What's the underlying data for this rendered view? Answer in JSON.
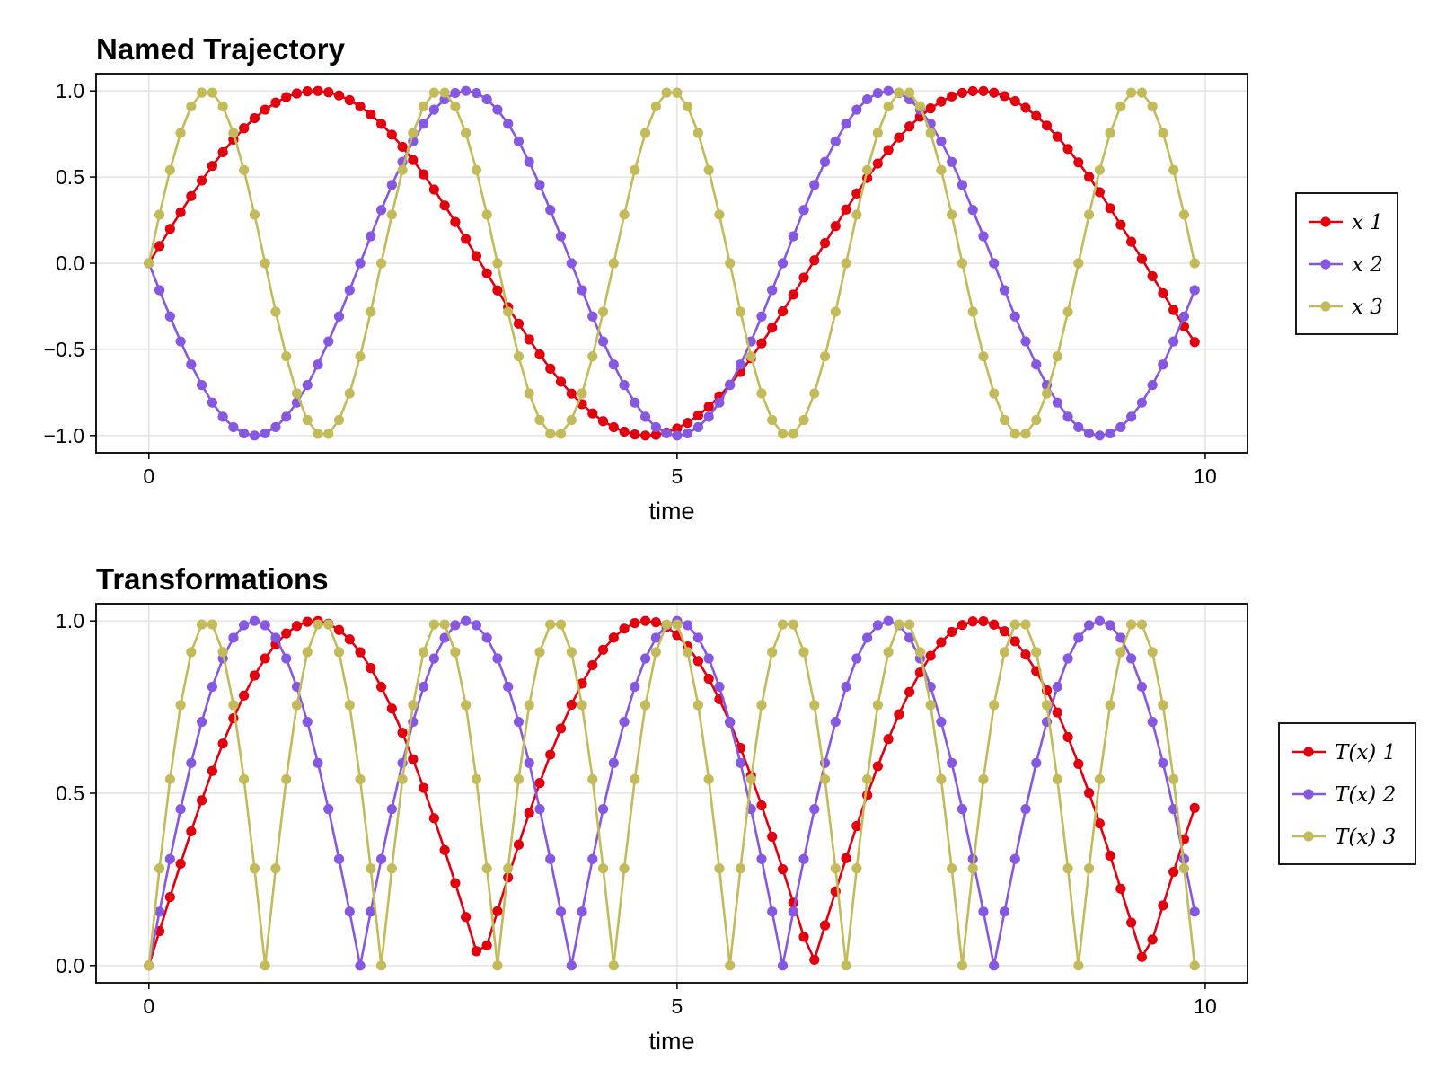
{
  "chart_data": [
    {
      "type": "line",
      "title": "Named Trajectory",
      "xlabel": "time",
      "ylabel": "",
      "xlim": [
        -0.5,
        10.4
      ],
      "ylim": [
        -1.1,
        1.1
      ],
      "xticks": [
        0,
        5,
        10
      ],
      "xtick_labels": [
        "0",
        "5",
        "10"
      ],
      "yticks": [
        1.0,
        0.5,
        0.0,
        -0.5,
        -1.0
      ],
      "ytick_labels": [
        "1.0",
        "0.5",
        "0.0",
        "−0.5",
        "−1.0"
      ],
      "grid": true,
      "legend_position": "right",
      "markers": true,
      "x": [
        0.0,
        0.1,
        0.2,
        0.3,
        0.4,
        0.5,
        0.6,
        0.7,
        0.8,
        0.9,
        1.0,
        1.1,
        1.2,
        1.3,
        1.4,
        1.5,
        1.6,
        1.7,
        1.8,
        1.9,
        2.0,
        2.1,
        2.2,
        2.3,
        2.4,
        2.5,
        2.6,
        2.7,
        2.8,
        2.9,
        3.0,
        3.1,
        3.2,
        3.3,
        3.4,
        3.5,
        3.6,
        3.7,
        3.8,
        3.9,
        4.0,
        4.1,
        4.2,
        4.3,
        4.4,
        4.5,
        4.6,
        4.7,
        4.8,
        4.9,
        5.0,
        5.1,
        5.2,
        5.3,
        5.4,
        5.5,
        5.6,
        5.7,
        5.8,
        5.9,
        6.0,
        6.1,
        6.2,
        6.3,
        6.4,
        6.5,
        6.6,
        6.7,
        6.8,
        6.9,
        7.0,
        7.1,
        7.2,
        7.3,
        7.4,
        7.5,
        7.6,
        7.7,
        7.8,
        7.9,
        8.0,
        8.1,
        8.2,
        8.3,
        8.4,
        8.5,
        8.6,
        8.7,
        8.8,
        8.9,
        9.0,
        9.1,
        9.2,
        9.3,
        9.4,
        9.5,
        9.6,
        9.7,
        9.8,
        9.9
      ],
      "series": [
        {
          "name": "x 1",
          "color": "#e2000e",
          "values": [
            0.0,
            0.0998,
            0.1987,
            0.2955,
            0.3894,
            0.4794,
            0.5646,
            0.6442,
            0.7174,
            0.7833,
            0.8415,
            0.8912,
            0.932,
            0.9636,
            0.9854,
            0.9975,
            0.9996,
            0.9917,
            0.9738,
            0.9463,
            0.9093,
            0.8632,
            0.8085,
            0.7457,
            0.6755,
            0.5985,
            0.5155,
            0.4274,
            0.335,
            0.2392,
            0.1411,
            0.0416,
            -0.0584,
            -0.1577,
            -0.2555,
            -0.3508,
            -0.4425,
            -0.5298,
            -0.6119,
            -0.6878,
            -0.7568,
            -0.8183,
            -0.8716,
            -0.9162,
            -0.9516,
            -0.9775,
            -0.9937,
            -0.9999,
            -0.9962,
            -0.9825,
            -0.9589,
            -0.9258,
            -0.8835,
            -0.8323,
            -0.7728,
            -0.7055,
            -0.6313,
            -0.5507,
            -0.4646,
            -0.3739,
            -0.2794,
            -0.1822,
            -0.0831,
            0.0168,
            0.1165,
            0.2151,
            0.3115,
            0.4048,
            0.4941,
            0.5784,
            0.657,
            0.729,
            0.7937,
            0.8504,
            0.8987,
            0.938,
            0.968,
            0.9882,
            0.9985,
            0.9989,
            0.9894,
            0.9699,
            0.9407,
            0.9022,
            0.8546,
            0.7985,
            0.7344,
            0.663,
            0.5849,
            0.501,
            0.4121,
            0.319,
            0.2229,
            0.1245,
            0.0248,
            -0.0752,
            -0.1743,
            -0.2718,
            -0.3665,
            -0.4575
          ]
        },
        {
          "name": "x 2",
          "color": "#8657e0",
          "values": [
            0.0,
            -0.1564,
            -0.309,
            -0.454,
            -0.5878,
            -0.7071,
            -0.809,
            -0.891,
            -0.9511,
            -0.9877,
            -1.0,
            -0.9877,
            -0.9511,
            -0.891,
            -0.809,
            -0.7071,
            -0.5878,
            -0.454,
            -0.309,
            -0.1564,
            0.0,
            0.1564,
            0.309,
            0.454,
            0.5878,
            0.7071,
            0.809,
            0.891,
            0.9511,
            0.9877,
            1.0,
            0.9877,
            0.9511,
            0.891,
            0.809,
            0.7071,
            0.5878,
            0.454,
            0.309,
            0.1564,
            0.0,
            -0.1564,
            -0.309,
            -0.454,
            -0.5878,
            -0.7071,
            -0.809,
            -0.891,
            -0.9511,
            -0.9877,
            -1.0,
            -0.9877,
            -0.9511,
            -0.891,
            -0.809,
            -0.7071,
            -0.5878,
            -0.454,
            -0.309,
            -0.1564,
            0.0,
            0.1564,
            0.309,
            0.454,
            0.5878,
            0.7071,
            0.809,
            0.891,
            0.9511,
            0.9877,
            1.0,
            0.9877,
            0.9511,
            0.891,
            0.809,
            0.7071,
            0.5878,
            0.454,
            0.309,
            0.1564,
            0.0,
            -0.1564,
            -0.309,
            -0.454,
            -0.5878,
            -0.7071,
            -0.809,
            -0.891,
            -0.9511,
            -0.9877,
            -1.0,
            -0.9877,
            -0.9511,
            -0.891,
            -0.809,
            -0.7071,
            -0.5878,
            -0.454,
            -0.309,
            -0.1564
          ]
        },
        {
          "name": "x 3",
          "color": "#c3bb5a",
          "values": [
            0.0,
            0.2817,
            0.5406,
            0.7558,
            0.9096,
            0.9898,
            0.9898,
            0.9096,
            0.7558,
            0.5406,
            0.2817,
            0.0,
            -0.2817,
            -0.5406,
            -0.7558,
            -0.9096,
            -0.9898,
            -0.9898,
            -0.9096,
            -0.7558,
            -0.5406,
            -0.2817,
            0.0,
            0.2817,
            0.5406,
            0.7558,
            0.9096,
            0.9898,
            0.9898,
            0.9096,
            0.7558,
            0.5406,
            0.2817,
            0.0,
            -0.2817,
            -0.5406,
            -0.7558,
            -0.9096,
            -0.9898,
            -0.9898,
            -0.9096,
            -0.7558,
            -0.5406,
            -0.2817,
            0.0,
            0.2817,
            0.5406,
            0.7558,
            0.9096,
            0.9898,
            0.9898,
            0.9096,
            0.7558,
            0.5406,
            0.2817,
            0.0,
            -0.2817,
            -0.5406,
            -0.7558,
            -0.9096,
            -0.9898,
            -0.9898,
            -0.9096,
            -0.7558,
            -0.5406,
            -0.2817,
            0.0,
            0.2817,
            0.5406,
            0.7558,
            0.9096,
            0.9898,
            0.9898,
            0.9096,
            0.7558,
            0.5406,
            0.2817,
            0.0,
            -0.2817,
            -0.5406,
            -0.7558,
            -0.9096,
            -0.9898,
            -0.9898,
            -0.9096,
            -0.7558,
            -0.5406,
            -0.2817,
            0.0,
            0.2817,
            0.5406,
            0.7558,
            0.9096,
            0.9898,
            0.9898,
            0.9096,
            0.7558,
            0.5406,
            0.2817,
            0.0
          ]
        }
      ]
    },
    {
      "type": "line",
      "title": "Transformations",
      "xlabel": "time",
      "ylabel": "",
      "xlim": [
        -0.5,
        10.4
      ],
      "ylim": [
        -0.05,
        1.05
      ],
      "xticks": [
        0,
        5,
        10
      ],
      "xtick_labels": [
        "0",
        "5",
        "10"
      ],
      "yticks": [
        1.0,
        0.5,
        0.0
      ],
      "ytick_labels": [
        "1.0",
        "0.5",
        "0.0"
      ],
      "grid": true,
      "legend_position": "right",
      "markers": true,
      "x": [
        0.0,
        0.1,
        0.2,
        0.3,
        0.4,
        0.5,
        0.6,
        0.7,
        0.8,
        0.9,
        1.0,
        1.1,
        1.2,
        1.3,
        1.4,
        1.5,
        1.6,
        1.7,
        1.8,
        1.9,
        2.0,
        2.1,
        2.2,
        2.3,
        2.4,
        2.5,
        2.6,
        2.7,
        2.8,
        2.9,
        3.0,
        3.1,
        3.2,
        3.3,
        3.4,
        3.5,
        3.6,
        3.7,
        3.8,
        3.9,
        4.0,
        4.1,
        4.2,
        4.3,
        4.4,
        4.5,
        4.6,
        4.7,
        4.8,
        4.9,
        5.0,
        5.1,
        5.2,
        5.3,
        5.4,
        5.5,
        5.6,
        5.7,
        5.8,
        5.9,
        6.0,
        6.1,
        6.2,
        6.3,
        6.4,
        6.5,
        6.6,
        6.7,
        6.8,
        6.9,
        7.0,
        7.1,
        7.2,
        7.3,
        7.4,
        7.5,
        7.6,
        7.7,
        7.8,
        7.9,
        8.0,
        8.1,
        8.2,
        8.3,
        8.4,
        8.5,
        8.6,
        8.7,
        8.8,
        8.9,
        9.0,
        9.1,
        9.2,
        9.3,
        9.4,
        9.5,
        9.6,
        9.7,
        9.8,
        9.9
      ],
      "series": [
        {
          "name": "T(x) 1",
          "color": "#e2000e",
          "values": [
            0.0,
            0.0998,
            0.1987,
            0.2955,
            0.3894,
            0.4794,
            0.5646,
            0.6442,
            0.7174,
            0.7833,
            0.8415,
            0.8912,
            0.932,
            0.9636,
            0.9854,
            0.9975,
            0.9996,
            0.9917,
            0.9738,
            0.9463,
            0.9093,
            0.8632,
            0.8085,
            0.7457,
            0.6755,
            0.5985,
            0.5155,
            0.4274,
            0.335,
            0.2392,
            0.1411,
            0.0416,
            0.0584,
            0.1577,
            0.2555,
            0.3508,
            0.4425,
            0.5298,
            0.6119,
            0.6878,
            0.7568,
            0.8183,
            0.8716,
            0.9162,
            0.9516,
            0.9775,
            0.9937,
            0.9999,
            0.9962,
            0.9825,
            0.9589,
            0.9258,
            0.8835,
            0.8323,
            0.7728,
            0.7055,
            0.6313,
            0.5507,
            0.4646,
            0.3739,
            0.2794,
            0.1822,
            0.0831,
            0.0168,
            0.1165,
            0.2151,
            0.3115,
            0.4048,
            0.4941,
            0.5784,
            0.657,
            0.729,
            0.7937,
            0.8504,
            0.8987,
            0.938,
            0.968,
            0.9882,
            0.9985,
            0.9989,
            0.9894,
            0.9699,
            0.9407,
            0.9022,
            0.8546,
            0.7985,
            0.7344,
            0.663,
            0.5849,
            0.501,
            0.4121,
            0.319,
            0.2229,
            0.1245,
            0.0248,
            0.0752,
            0.1743,
            0.2718,
            0.3665,
            0.4575
          ]
        },
        {
          "name": "T(x) 2",
          "color": "#8657e0",
          "values": [
            0.0,
            0.1564,
            0.309,
            0.454,
            0.5878,
            0.7071,
            0.809,
            0.891,
            0.9511,
            0.9877,
            1.0,
            0.9877,
            0.9511,
            0.891,
            0.809,
            0.7071,
            0.5878,
            0.454,
            0.309,
            0.1564,
            0.0,
            0.1564,
            0.309,
            0.454,
            0.5878,
            0.7071,
            0.809,
            0.891,
            0.9511,
            0.9877,
            1.0,
            0.9877,
            0.9511,
            0.891,
            0.809,
            0.7071,
            0.5878,
            0.454,
            0.309,
            0.1564,
            0.0,
            0.1564,
            0.309,
            0.454,
            0.5878,
            0.7071,
            0.809,
            0.891,
            0.9511,
            0.9877,
            1.0,
            0.9877,
            0.9511,
            0.891,
            0.809,
            0.7071,
            0.5878,
            0.454,
            0.309,
            0.1564,
            0.0,
            0.1564,
            0.309,
            0.454,
            0.5878,
            0.7071,
            0.809,
            0.891,
            0.9511,
            0.9877,
            1.0,
            0.9877,
            0.9511,
            0.891,
            0.809,
            0.7071,
            0.5878,
            0.454,
            0.309,
            0.1564,
            0.0,
            0.1564,
            0.309,
            0.454,
            0.5878,
            0.7071,
            0.809,
            0.891,
            0.9511,
            0.9877,
            1.0,
            0.9877,
            0.9511,
            0.891,
            0.809,
            0.7071,
            0.5878,
            0.454,
            0.309,
            0.1564
          ]
        },
        {
          "name": "T(x) 3",
          "color": "#c3bb5a",
          "values": [
            0.0,
            0.2817,
            0.5406,
            0.7558,
            0.9096,
            0.9898,
            0.9898,
            0.9096,
            0.7558,
            0.5406,
            0.2817,
            0.0,
            0.2817,
            0.5406,
            0.7558,
            0.9096,
            0.9898,
            0.9898,
            0.9096,
            0.7558,
            0.5406,
            0.2817,
            0.0,
            0.2817,
            0.5406,
            0.7558,
            0.9096,
            0.9898,
            0.9898,
            0.9096,
            0.7558,
            0.5406,
            0.2817,
            0.0,
            0.2817,
            0.5406,
            0.7558,
            0.9096,
            0.9898,
            0.9898,
            0.9096,
            0.7558,
            0.5406,
            0.2817,
            0.0,
            0.2817,
            0.5406,
            0.7558,
            0.9096,
            0.9898,
            0.9898,
            0.9096,
            0.7558,
            0.5406,
            0.2817,
            0.0,
            0.2817,
            0.5406,
            0.7558,
            0.9096,
            0.9898,
            0.9898,
            0.9096,
            0.7558,
            0.5406,
            0.2817,
            0.0,
            0.2817,
            0.5406,
            0.7558,
            0.9096,
            0.9898,
            0.9898,
            0.9096,
            0.7558,
            0.5406,
            0.2817,
            0.0,
            0.2817,
            0.5406,
            0.7558,
            0.9096,
            0.9898,
            0.9898,
            0.9096,
            0.7558,
            0.5406,
            0.2817,
            0.0,
            0.2817,
            0.5406,
            0.7558,
            0.9096,
            0.9898,
            0.9898,
            0.9096,
            0.7558,
            0.5406,
            0.2817,
            0.0
          ]
        }
      ]
    }
  ]
}
